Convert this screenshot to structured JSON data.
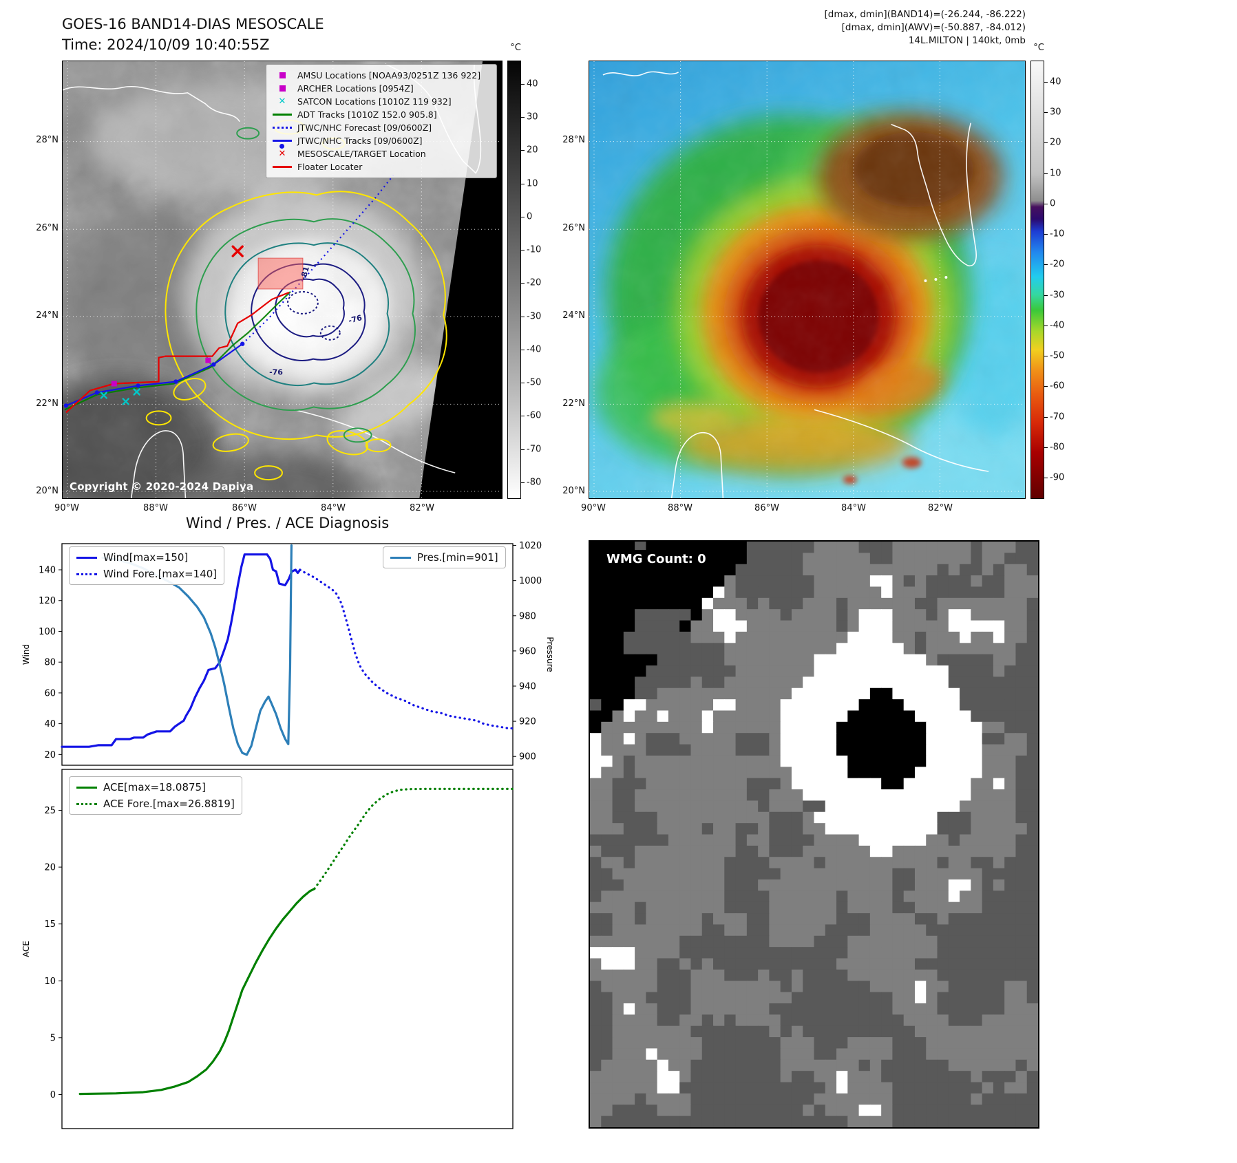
{
  "band14_panel": {
    "title": "GOES-16 BAND14-DIAS MESOSCALE",
    "time_line": "Time: 2024/10/09 10:40:55Z",
    "copyright": "Copyright © 2020-2024 Dapiya",
    "legend_items": [
      {
        "label": "AMSU Locations [NOAA93/0251Z 136 922]",
        "marker": "square",
        "color": "#c800c8"
      },
      {
        "label": "ARCHER Locations [0954Z]",
        "marker": "square",
        "color": "#c800c8"
      },
      {
        "label": "SATCON Locations [1010Z 119 932]",
        "marker": "x",
        "color": "#00c8c8"
      },
      {
        "label": "ADT Tracks [1010Z 152.0 905.8]",
        "marker": "line",
        "color": "#008000"
      },
      {
        "label": "JTWC/NHC Forecast [09/0600Z]",
        "marker": "dotted-line",
        "color": "#1414e6"
      },
      {
        "label": "JTWC/NHC Tracks [09/0600Z]",
        "marker": "line-dot",
        "color": "#1414e6"
      },
      {
        "label": "MESOSCALE/TARGET Location",
        "marker": "x",
        "color": "#e60000"
      },
      {
        "label": "Floater Locater",
        "marker": "line",
        "color": "#e60000"
      }
    ],
    "lat_ticks": [
      "28°N",
      "26°N",
      "24°N",
      "22°N",
      "20°N"
    ],
    "lon_ticks": [
      "90°W",
      "88°W",
      "86°W",
      "84°W",
      "82°W"
    ],
    "contour_labels": [
      "-81",
      "-76",
      "-76"
    ],
    "colorbar": {
      "unit": "°C",
      "scale": [
        47,
        -85
      ],
      "ticks": [
        40,
        30,
        20,
        10,
        0,
        -10,
        -20,
        -30,
        -40,
        -50,
        -60,
        -70,
        -80
      ],
      "stops": [
        {
          "value": 47,
          "color": "#050505"
        },
        {
          "value": 10,
          "color": "#454545"
        },
        {
          "value": -20,
          "color": "#7b7b7b"
        },
        {
          "value": -50,
          "color": "#b4b4b4"
        },
        {
          "value": -85,
          "color": "#ffffff"
        }
      ]
    }
  },
  "awv_panel": {
    "header_lines": [
      "[dmax, dmin](BAND14)=(-26.244, -86.222)",
      "[dmax, dmin](AWV)=(-50.887, -84.012)",
      "14L.MILTON | 140kt, 0mb"
    ],
    "lat_ticks": [
      "28°N",
      "26°N",
      "24°N",
      "22°N",
      "20°N"
    ],
    "lon_ticks": [
      "90°W",
      "88°W",
      "86°W",
      "84°W",
      "82°W"
    ],
    "colorbar": {
      "unit": "°C",
      "scale": [
        47,
        -97
      ],
      "ticks": [
        40,
        30,
        20,
        10,
        0,
        -10,
        -20,
        -30,
        -40,
        -50,
        -60,
        -70,
        -80,
        -90
      ],
      "stops": [
        {
          "value": 47,
          "color": "#f8f8f8"
        },
        {
          "value": 10,
          "color": "#c2c2c2"
        },
        {
          "value": 1,
          "color": "#8e8e8e"
        },
        {
          "value": -1,
          "color": "#46105e"
        },
        {
          "value": -5,
          "color": "#2c0a6e"
        },
        {
          "value": -9,
          "color": "#1e3cd2"
        },
        {
          "value": -16,
          "color": "#2288ee"
        },
        {
          "value": -24,
          "color": "#22ccee"
        },
        {
          "value": -30,
          "color": "#35d8a0"
        },
        {
          "value": -35,
          "color": "#3ac83a"
        },
        {
          "value": -42,
          "color": "#a8d82a"
        },
        {
          "value": -48,
          "color": "#f0d020"
        },
        {
          "value": -55,
          "color": "#f09018"
        },
        {
          "value": -63,
          "color": "#e85a10"
        },
        {
          "value": -72,
          "color": "#d82a08"
        },
        {
          "value": -82,
          "color": "#a80000"
        },
        {
          "value": -97,
          "color": "#600000"
        }
      ]
    }
  },
  "wmg_panel": {
    "label": "WMG Count: 0",
    "palette": {
      "black": "#000000",
      "dark": "#595959",
      "mid": "#7f7f7f",
      "white": "#ffffff"
    }
  },
  "diagnosis_title": "Wind / Pres. / ACE Diagnosis",
  "chart_data": [
    {
      "type": "line",
      "title": "Wind / Pres. / ACE Diagnosis",
      "x_range": [
        0,
        100
      ],
      "x_axis": {
        "ticks": []
      },
      "left_axis": {
        "label": "Wind",
        "range": [
          13,
          157
        ],
        "ticks": [
          20,
          40,
          60,
          80,
          100,
          120,
          140
        ]
      },
      "right_axis": {
        "label": "Pressure",
        "range": [
          895,
          1021
        ],
        "ticks": [
          900,
          920,
          940,
          960,
          980,
          1000,
          1020
        ]
      },
      "series": [
        {
          "name": "Wind[max=150]",
          "axis": "left",
          "style": "solid",
          "color": "#1414e6",
          "x": [
            0,
            6,
            8,
            11,
            12,
            15,
            16,
            18,
            19,
            21,
            24,
            25,
            26,
            27,
            27.5,
            28.5,
            29.5,
            30.5,
            31.5,
            32.5,
            34,
            35,
            36,
            36.8,
            37.5,
            38.3,
            39,
            39.8,
            40.5,
            45.5,
            46.2,
            46.8,
            47.5,
            48.2,
            49.5,
            50.3,
            51,
            51.8,
            52.3,
            52.8
          ],
          "y": [
            25,
            25,
            26,
            26,
            30,
            30,
            31,
            31,
            33,
            35,
            35,
            38,
            40,
            42,
            45,
            50,
            57,
            63,
            68,
            75,
            76,
            80,
            88,
            95,
            105,
            118,
            130,
            142,
            150,
            150,
            147,
            140,
            139,
            131,
            130,
            134,
            139,
            140,
            138,
            140
          ]
        },
        {
          "name": "Wind Fore.[max=140]",
          "axis": "left",
          "style": "dotted",
          "color": "#1414e6",
          "x": [
            52.8,
            54,
            56,
            58,
            60,
            61,
            62,
            63,
            64,
            65,
            66,
            67,
            68.5,
            70,
            72,
            74,
            76,
            78,
            80,
            82,
            84,
            86,
            88,
            90,
            92,
            93.5,
            95,
            97,
            99,
            100
          ],
          "y": [
            140,
            138,
            135,
            131,
            127,
            124,
            118,
            108,
            97,
            86,
            78,
            73,
            68,
            64,
            60,
            57,
            55,
            52,
            50,
            48,
            47,
            45,
            44,
            43,
            42,
            40,
            39,
            38,
            37,
            37
          ]
        },
        {
          "name": "Pres.[min=901]",
          "axis": "right",
          "style": "solid",
          "color": "#2d7fb8",
          "x": [
            9,
            12,
            15,
            18,
            21,
            24,
            26,
            28,
            30,
            31.5,
            33,
            34,
            35,
            36,
            37,
            38,
            39,
            40,
            41,
            42,
            43,
            44,
            45,
            45.8,
            46.5,
            47.5,
            48.5,
            49.5,
            50.2,
            50.6,
            50.9
          ],
          "y": [
            1013,
            1012,
            1010,
            1007,
            1003,
            999,
            996,
            991,
            985,
            979,
            970,
            962,
            952,
            941,
            928,
            916,
            907,
            902,
            901,
            906,
            916,
            926,
            931,
            934,
            930,
            924,
            916,
            910,
            907,
            950,
            1020
          ]
        }
      ]
    },
    {
      "type": "line",
      "title": "",
      "x_range": [
        0,
        100
      ],
      "x_axis": {
        "ticks": []
      },
      "left_axis": {
        "label": "ACE",
        "range": [
          -3,
          28.6
        ],
        "ticks": [
          0,
          5,
          10,
          15,
          20,
          25
        ]
      },
      "series": [
        {
          "name": "ACE[max=18.0875]",
          "axis": "left",
          "style": "solid",
          "color": "#008000",
          "x": [
            4,
            12,
            18,
            22,
            25,
            28,
            30,
            32,
            33.5,
            35,
            36,
            37,
            38,
            39,
            40,
            41.5,
            43,
            44.5,
            46,
            47.5,
            49,
            50.5,
            52,
            53.5,
            55,
            56
          ],
          "y": [
            0.05,
            0.1,
            0.2,
            0.4,
            0.7,
            1.1,
            1.6,
            2.2,
            2.9,
            3.8,
            4.6,
            5.6,
            6.8,
            8.0,
            9.2,
            10.4,
            11.6,
            12.7,
            13.7,
            14.6,
            15.4,
            16.1,
            16.8,
            17.4,
            17.9,
            18.09
          ]
        },
        {
          "name": "ACE Fore.[max=26.8819]",
          "axis": "left",
          "style": "dotted",
          "color": "#008000",
          "x": [
            56,
            58,
            60,
            62,
            64,
            66,
            67.5,
            69,
            70.5,
            72,
            73.5,
            75,
            77,
            80,
            85,
            90,
            95,
            100
          ],
          "y": [
            18.1,
            19.2,
            20.4,
            21.6,
            22.8,
            23.9,
            24.8,
            25.5,
            26.0,
            26.4,
            26.65,
            26.8,
            26.86,
            26.88,
            26.88,
            26.88,
            26.88,
            26.88
          ]
        }
      ]
    }
  ]
}
